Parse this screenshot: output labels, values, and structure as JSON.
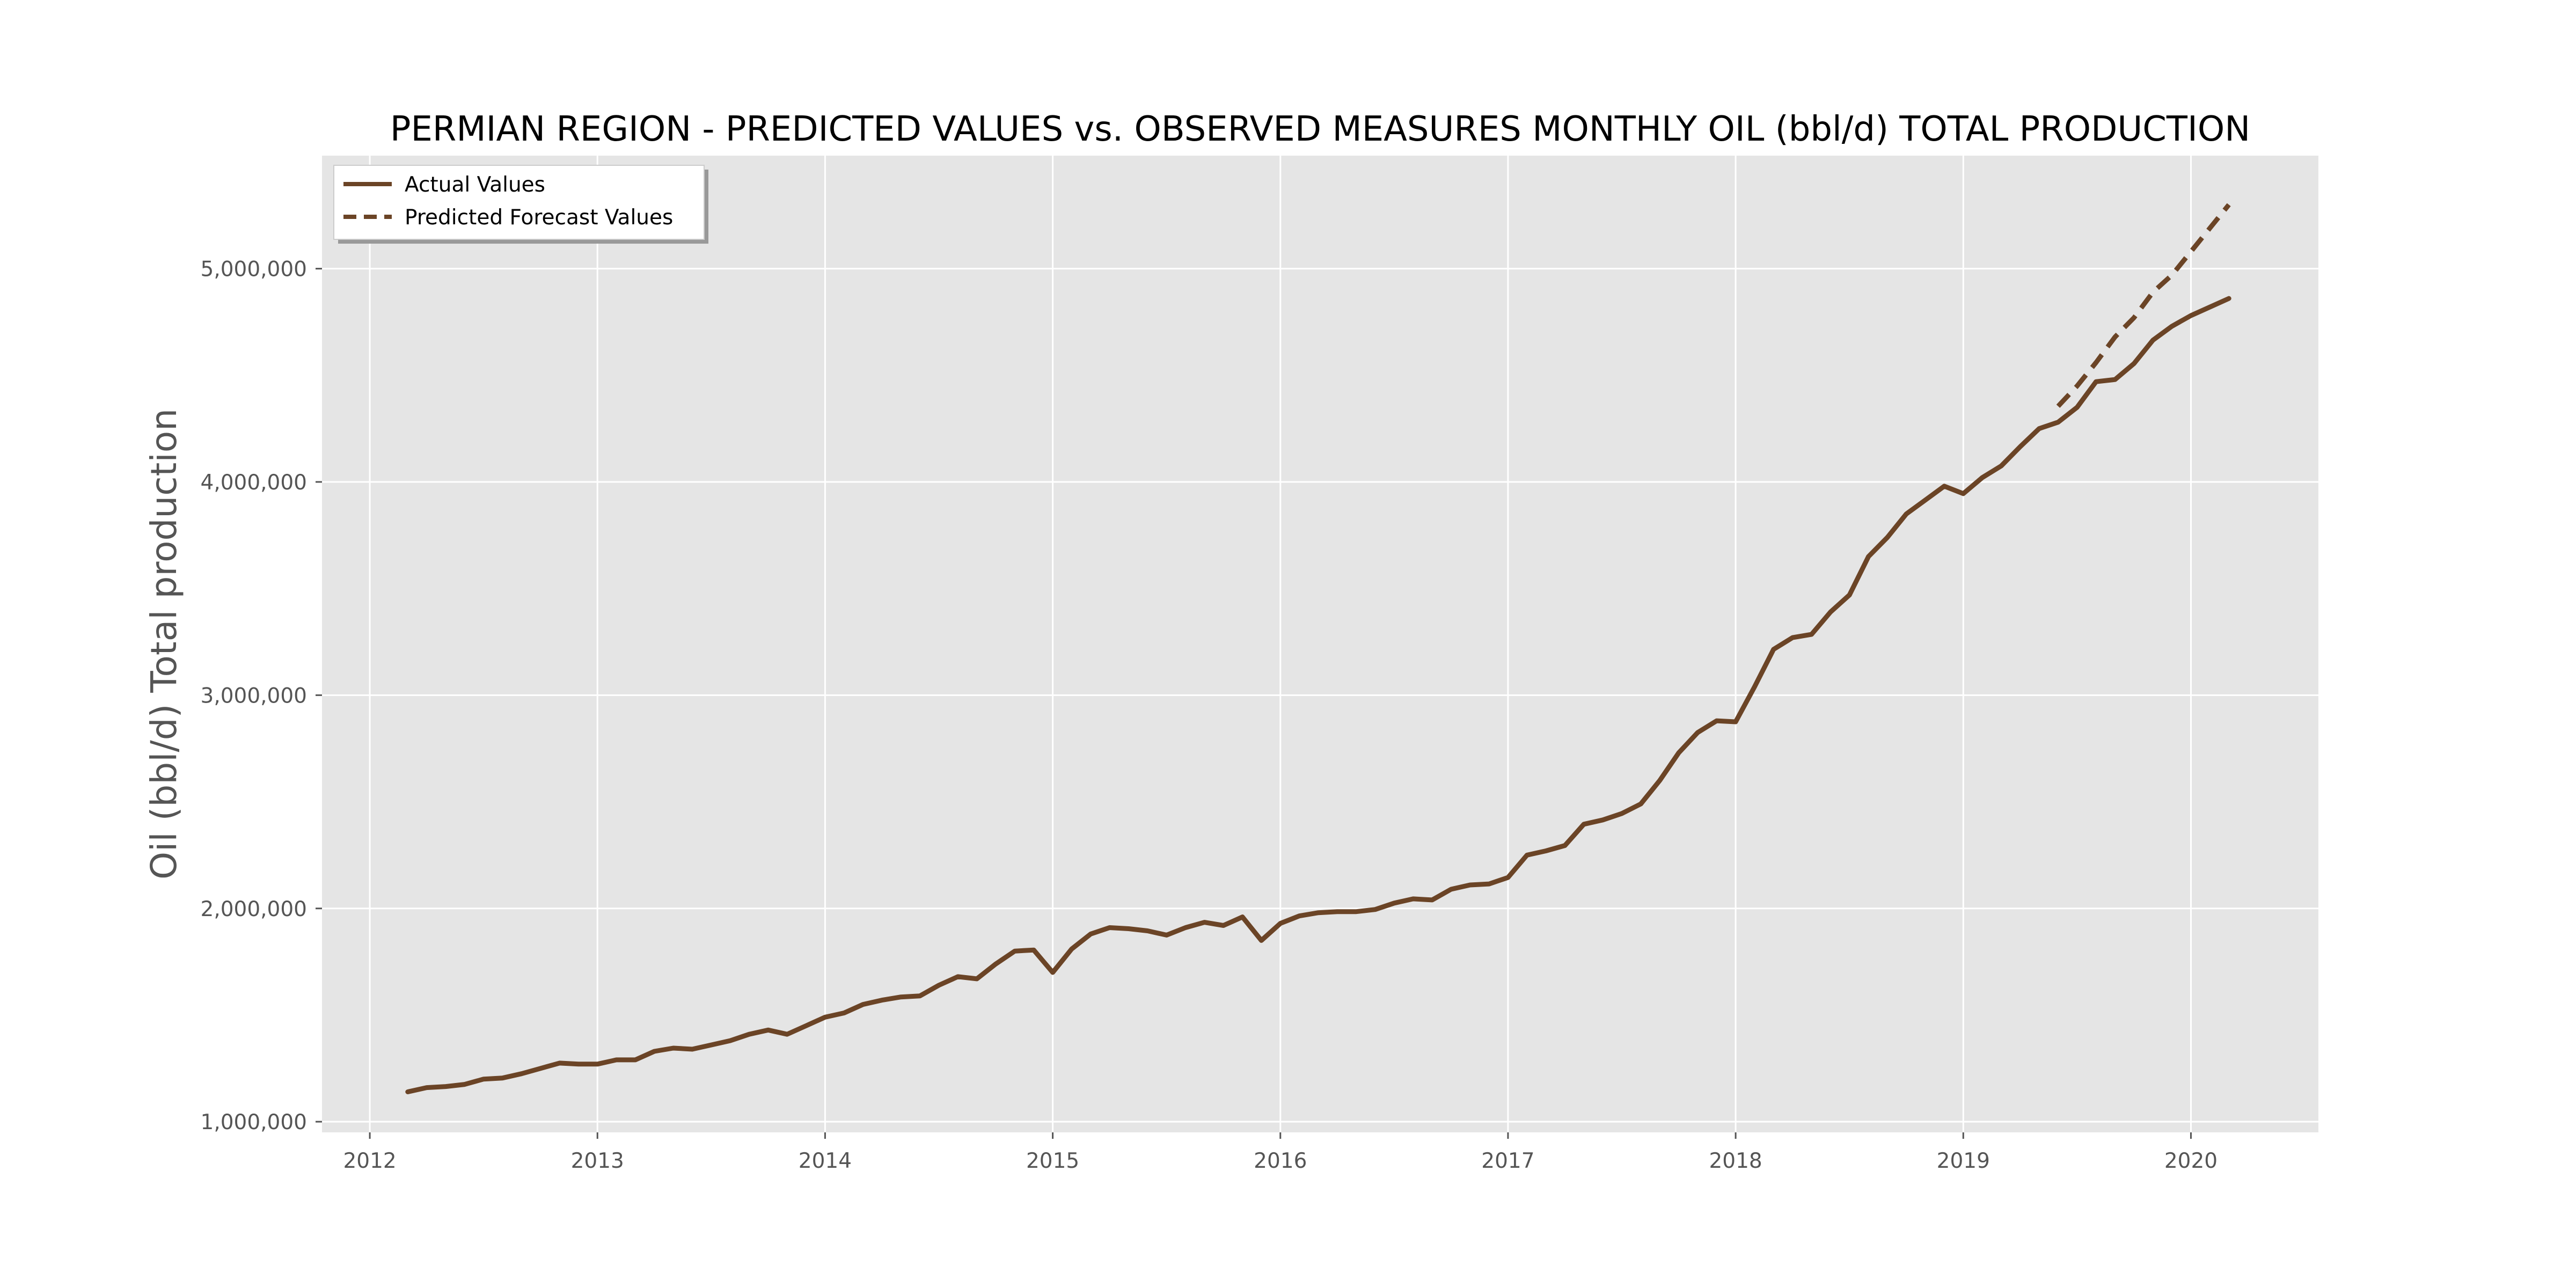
{
  "chart_data": {
    "type": "line",
    "title": "PERMIAN REGION - PREDICTED VALUES vs. OBSERVED MEASURES MONTHLY OIL (bbl/d) TOTAL PRODUCTION",
    "xlabel": "",
    "ylabel": "Oil (bbl/d) Total production",
    "xlim": [
      2011.79,
      2020.56
    ],
    "ylim": [
      950000,
      5530000
    ],
    "x_ticks": [
      "2012",
      "2013",
      "2014",
      "2015",
      "2016",
      "2017",
      "2018",
      "2019",
      "2020"
    ],
    "y_ticks": [
      "1,000,000",
      "2,000,000",
      "3,000,000",
      "4,000,000",
      "5,000,000"
    ],
    "grid": true,
    "legend_position": "top-left",
    "colors": {
      "series": "#6b4426",
      "plot_background": "#e5e5e5",
      "grid": "#ffffff"
    },
    "series": [
      {
        "name": "Actual Values",
        "style": "solid",
        "x": [
          "2012-03",
          "2012-04",
          "2012-05",
          "2012-06",
          "2012-07",
          "2012-08",
          "2012-09",
          "2012-10",
          "2012-11",
          "2012-12",
          "2013-01",
          "2013-02",
          "2013-03",
          "2013-04",
          "2013-05",
          "2013-06",
          "2013-07",
          "2013-08",
          "2013-09",
          "2013-10",
          "2013-11",
          "2013-12",
          "2014-01",
          "2014-02",
          "2014-03",
          "2014-04",
          "2014-05",
          "2014-06",
          "2014-07",
          "2014-08",
          "2014-09",
          "2014-10",
          "2014-11",
          "2014-12",
          "2015-01",
          "2015-02",
          "2015-03",
          "2015-04",
          "2015-05",
          "2015-06",
          "2015-07",
          "2015-08",
          "2015-09",
          "2015-10",
          "2015-11",
          "2015-12",
          "2016-01",
          "2016-02",
          "2016-03",
          "2016-04",
          "2016-05",
          "2016-06",
          "2016-07",
          "2016-08",
          "2016-09",
          "2016-10",
          "2016-11",
          "2016-12",
          "2017-01",
          "2017-02",
          "2017-03",
          "2017-04",
          "2017-05",
          "2017-06",
          "2017-07",
          "2017-08",
          "2017-09",
          "2017-10",
          "2017-11",
          "2017-12",
          "2018-01",
          "2018-02",
          "2018-03",
          "2018-04",
          "2018-05",
          "2018-06",
          "2018-07",
          "2018-08",
          "2018-09",
          "2018-10",
          "2018-11",
          "2018-12",
          "2019-01",
          "2019-02",
          "2019-03",
          "2019-04",
          "2019-05",
          "2019-06",
          "2019-07",
          "2019-08",
          "2019-09",
          "2019-10",
          "2019-11",
          "2019-12",
          "2020-01",
          "2020-02",
          "2020-03"
        ],
        "values": [
          1140000,
          1160000,
          1165000,
          1175000,
          1200000,
          1205000,
          1225000,
          1250000,
          1275000,
          1270000,
          1270000,
          1290000,
          1290000,
          1330000,
          1345000,
          1340000,
          1360000,
          1380000,
          1410000,
          1430000,
          1410000,
          1450000,
          1490000,
          1510000,
          1550000,
          1570000,
          1585000,
          1590000,
          1640000,
          1680000,
          1670000,
          1740000,
          1800000,
          1805000,
          1700000,
          1810000,
          1880000,
          1910000,
          1905000,
          1895000,
          1875000,
          1910000,
          1935000,
          1920000,
          1960000,
          1850000,
          1930000,
          1965000,
          1980000,
          1985000,
          1985000,
          1995000,
          2025000,
          2045000,
          2040000,
          2090000,
          2110000,
          2115000,
          2145000,
          2250000,
          2270000,
          2295000,
          2395000,
          2415000,
          2445000,
          2490000,
          2600000,
          2730000,
          2825000,
          2880000,
          2875000,
          3040000,
          3215000,
          3270000,
          3285000,
          3390000,
          3470000,
          3650000,
          3740000,
          3850000,
          3915000,
          3980000,
          3945000,
          4020000,
          4075000,
          4165000,
          4250000,
          4280000,
          4350000,
          4470000,
          4480000,
          4555000,
          4665000,
          4730000,
          4780000,
          4820000,
          4860000
        ]
      },
      {
        "name": "Predicted Forecast Values",
        "style": "dashed",
        "x": [
          "2019-06",
          "2019-07",
          "2019-08",
          "2019-09",
          "2019-10",
          "2019-11",
          "2019-12",
          "2020-01",
          "2020-02",
          "2020-03"
        ],
        "values": [
          4355000,
          4450000,
          4560000,
          4680000,
          4770000,
          4890000,
          4970000,
          5080000,
          5190000,
          5300000
        ]
      }
    ]
  }
}
